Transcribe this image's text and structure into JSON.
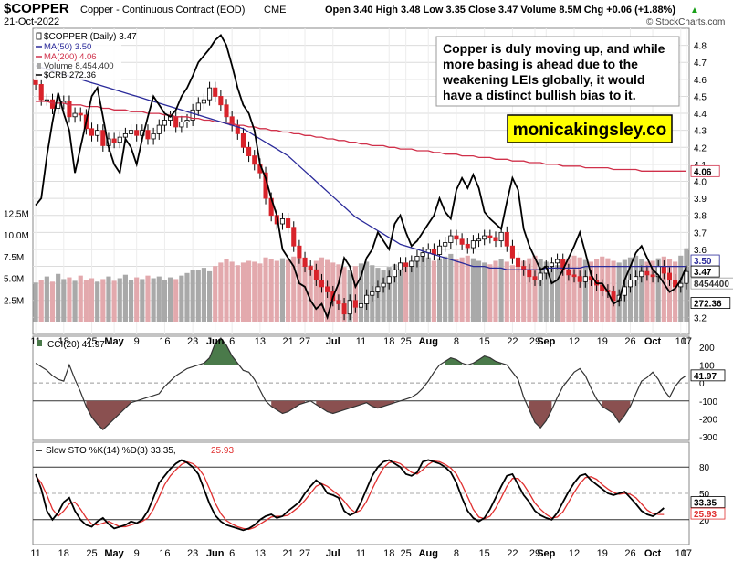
{
  "header": {
    "symbol": "$COPPER",
    "name": "Copper - Continuous Contract (EOD)",
    "exchange": "CME",
    "date": "21-Oct-2022",
    "quote": "Open 3.40  High 3.48  Low 3.35  Close 3.47  Volume 8.5M  Chg +0.06 (+1.88%)",
    "quote_arrow": "▲",
    "brand": "© StockCharts.com"
  },
  "legend": {
    "price": "$COPPER (Daily) 3.47",
    "ma50": "MA(50) 3.50",
    "ma200": "MA(200) 4.06",
    "volume": "Volume 8,454,400",
    "crb": "$CRB 272.36"
  },
  "annotation": {
    "lines": [
      "Copper is duly moving up, and while",
      "more basing is ahead due to the",
      "weakening LEIs globally, it would",
      "have a distinct bullish bias to it."
    ],
    "site": "monicakingsley.co"
  },
  "indicators": {
    "cci_label": "CCI(20) 41.97",
    "sto_label_a": "Slow STO %K(14) %D(3) 33.35,",
    "sto_label_b": "25.93"
  },
  "badges": {
    "ma200": "4.06",
    "close": "3.47",
    "ma50": "3.50",
    "volume": "8454400",
    "crb": "272.36",
    "cci": "41.97",
    "sto_k": "33.35",
    "sto_d": "25.93"
  },
  "colors": {
    "up_candle": "#ffffff",
    "down_candle": "#d8232a",
    "ma50": "#2a2a9a",
    "ma200": "#d0304a",
    "crb": "#000000",
    "volume_up": "#a9a9a9",
    "volume_down": "#e3a9ad",
    "cci_pos_fill": "#4a7a4a",
    "cci_neg_fill": "#8a5050",
    "sto_k": "#000000",
    "sto_d": "#e03030",
    "annotation_fill": "#ffff00"
  },
  "chart_data": [
    {
      "type": "line",
      "panel": "price",
      "x_tick_labels": [
        "11",
        "18",
        "25",
        "May",
        "9",
        "16",
        "23",
        "Jun",
        "6",
        "13",
        "21",
        "27",
        "Jul",
        "11",
        "18",
        "25",
        "Aug",
        "8",
        "15",
        "22",
        "29",
        "Sep",
        "12",
        "19",
        "26",
        "Oct",
        "10",
        "17"
      ],
      "y_tick_labels_right": [
        "4.8",
        "4.7",
        "4.6",
        "4.5",
        "4.4",
        "4.3",
        "4.2",
        "4.1",
        "4.0",
        "3.9",
        "3.8",
        "3.7",
        "3.6",
        "3.5",
        "3.4",
        "3.3",
        "3.2"
      ],
      "volume_axis_labels": [
        "12.5M",
        "10.0M",
        "7.5M",
        "5.0M",
        "2.5M"
      ],
      "ylim": [
        3.1,
        4.9
      ],
      "price_close": [
        4.57,
        4.48,
        4.48,
        4.43,
        4.46,
        4.47,
        4.38,
        4.4,
        4.39,
        4.31,
        4.27,
        4.3,
        4.21,
        4.25,
        4.23,
        4.26,
        4.28,
        4.3,
        4.27,
        4.3,
        4.25,
        4.28,
        4.33,
        4.36,
        4.38,
        4.32,
        4.35,
        4.36,
        4.42,
        4.46,
        4.48,
        4.55,
        4.5,
        4.45,
        4.38,
        4.33,
        4.28,
        4.2,
        4.15,
        4.1,
        4.05,
        3.9,
        3.8,
        3.75,
        3.78,
        3.73,
        3.62,
        3.55,
        3.5,
        3.48,
        3.42,
        3.38,
        3.35,
        3.3,
        3.28,
        3.22,
        3.3,
        3.26,
        3.28,
        3.33,
        3.35,
        3.38,
        3.4,
        3.44,
        3.48,
        3.52,
        3.5,
        3.53,
        3.56,
        3.58,
        3.6,
        3.57,
        3.62,
        3.64,
        3.68,
        3.66,
        3.63,
        3.61,
        3.65,
        3.66,
        3.68,
        3.67,
        3.65,
        3.7,
        3.62,
        3.55,
        3.5,
        3.48,
        3.44,
        3.42,
        3.46,
        3.5,
        3.52,
        3.54,
        3.48,
        3.45,
        3.44,
        3.41,
        3.44,
        3.42,
        3.39,
        3.36,
        3.35,
        3.3,
        3.33,
        3.38,
        3.42,
        3.44,
        3.47,
        3.45,
        3.44,
        3.5,
        3.46,
        3.42,
        3.38,
        3.4,
        3.47
      ],
      "ma50": [
        4.68,
        4.67,
        4.66,
        4.65,
        4.64,
        4.63,
        4.62,
        4.61,
        4.6,
        4.59,
        4.58,
        4.57,
        4.56,
        4.55,
        4.54,
        4.53,
        4.52,
        4.51,
        4.5,
        4.49,
        4.48,
        4.47,
        4.46,
        4.45,
        4.44,
        4.43,
        4.42,
        4.41,
        4.4,
        4.39,
        4.38,
        4.37,
        4.36,
        4.35,
        4.34,
        4.33,
        4.32,
        4.31,
        4.29,
        4.27,
        4.25,
        4.23,
        4.21,
        4.19,
        4.17,
        4.15,
        4.12,
        4.09,
        4.06,
        4.03,
        4.0,
        3.97,
        3.94,
        3.91,
        3.88,
        3.85,
        3.82,
        3.79,
        3.77,
        3.75,
        3.73,
        3.71,
        3.69,
        3.67,
        3.65,
        3.63,
        3.62,
        3.61,
        3.6,
        3.59,
        3.58,
        3.57,
        3.56,
        3.55,
        3.54,
        3.53,
        3.52,
        3.51,
        3.5,
        3.5,
        3.5,
        3.49,
        3.49,
        3.49,
        3.48,
        3.48,
        3.48,
        3.48,
        3.48,
        3.48,
        3.48,
        3.49,
        3.49,
        3.49,
        3.49,
        3.49,
        3.49,
        3.49,
        3.5,
        3.5,
        3.5,
        3.5,
        3.5,
        3.5,
        3.5,
        3.5,
        3.5,
        3.5,
        3.5,
        3.5,
        3.5,
        3.5,
        3.5,
        3.5,
        3.5,
        3.5,
        3.5
      ],
      "ma200": [
        4.47,
        4.47,
        4.47,
        4.46,
        4.46,
        4.46,
        4.45,
        4.45,
        4.45,
        4.44,
        4.44,
        4.44,
        4.43,
        4.43,
        4.42,
        4.42,
        4.42,
        4.41,
        4.41,
        4.41,
        4.4,
        4.4,
        4.4,
        4.39,
        4.39,
        4.38,
        4.38,
        4.38,
        4.37,
        4.37,
        4.36,
        4.36,
        4.35,
        4.35,
        4.34,
        4.34,
        4.33,
        4.33,
        4.32,
        4.32,
        4.31,
        4.31,
        4.3,
        4.3,
        4.29,
        4.29,
        4.28,
        4.28,
        4.27,
        4.27,
        4.26,
        4.26,
        4.25,
        4.25,
        4.24,
        4.24,
        4.23,
        4.23,
        4.22,
        4.22,
        4.21,
        4.21,
        4.21,
        4.2,
        4.2,
        4.19,
        4.19,
        4.19,
        4.18,
        4.18,
        4.18,
        4.17,
        4.17,
        4.16,
        4.16,
        4.16,
        4.15,
        4.15,
        4.15,
        4.14,
        4.14,
        4.14,
        4.13,
        4.13,
        4.13,
        4.12,
        4.12,
        4.12,
        4.11,
        4.11,
        4.11,
        4.1,
        4.1,
        4.1,
        4.09,
        4.09,
        4.09,
        4.09,
        4.08,
        4.08,
        4.08,
        4.08,
        4.08,
        4.07,
        4.07,
        4.07,
        4.07,
        4.07,
        4.06,
        4.06,
        4.06,
        4.06,
        4.06,
        4.06,
        4.06,
        4.06,
        4.06
      ],
      "crb": [
        3.86,
        3.9,
        4.15,
        4.35,
        4.52,
        4.4,
        4.3,
        4.05,
        4.2,
        4.35,
        4.5,
        4.55,
        4.38,
        4.2,
        4.1,
        4.05,
        4.25,
        4.2,
        4.1,
        4.25,
        4.38,
        4.5,
        4.45,
        4.4,
        4.38,
        4.42,
        4.5,
        4.55,
        4.62,
        4.7,
        4.74,
        4.78,
        4.83,
        4.86,
        4.8,
        4.68,
        4.55,
        4.45,
        4.4,
        4.3,
        4.1,
        4.02,
        3.9,
        3.8,
        3.6,
        3.55,
        3.5,
        3.4,
        3.38,
        3.3,
        3.25,
        3.28,
        3.2,
        3.32,
        3.4,
        3.55,
        3.5,
        3.38,
        3.44,
        3.55,
        3.6,
        3.7,
        3.65,
        3.6,
        3.75,
        3.8,
        3.7,
        3.62,
        3.65,
        3.7,
        3.75,
        3.8,
        3.9,
        3.82,
        3.78,
        3.95,
        4.02,
        3.96,
        4.04,
        3.96,
        3.82,
        3.78,
        3.75,
        3.72,
        3.88,
        4.02,
        3.95,
        3.72,
        3.62,
        3.55,
        3.48,
        3.5,
        3.4,
        3.42,
        3.48,
        3.55,
        3.62,
        3.7,
        3.58,
        3.45,
        3.4,
        3.4,
        3.35,
        3.28,
        3.3,
        3.42,
        3.5,
        3.58,
        3.62,
        3.55,
        3.48,
        3.45,
        3.4,
        3.35,
        3.37,
        3.42,
        3.5
      ],
      "volume_millions": [
        4.5,
        4.8,
        5.2,
        4.6,
        5.5,
        4.9,
        5.1,
        4.7,
        5.3,
        4.8,
        5.0,
        4.6,
        4.9,
        5.2,
        4.7,
        5.0,
        5.4,
        4.8,
        5.1,
        4.9,
        5.3,
        5.0,
        5.2,
        4.8,
        5.1,
        4.9,
        5.3,
        5.6,
        5.9,
        6.0,
        6.2,
        5.8,
        6.4,
        6.8,
        7.2,
        6.9,
        6.5,
        6.8,
        7.0,
        6.9,
        6.7,
        7.4,
        7.2,
        7.0,
        7.3,
        7.1,
        7.5,
        7.2,
        6.8,
        6.5,
        7.0,
        7.4,
        7.1,
        6.8,
        6.6,
        6.3,
        6.0,
        6.4,
        6.7,
        6.9,
        6.5,
        6.2,
        6.0,
        6.3,
        6.6,
        6.4,
        6.8,
        7.0,
        7.2,
        7.6,
        7.4,
        7.0,
        7.3,
        7.5,
        7.8,
        7.2,
        7.4,
        7.6,
        7.3,
        7.0,
        6.8,
        6.6,
        7.0,
        7.2,
        6.9,
        6.5,
        6.8,
        7.0,
        7.3,
        7.6,
        7.2,
        6.9,
        6.7,
        6.5,
        7.0,
        7.3,
        7.6,
        7.4,
        7.1,
        6.9,
        7.2,
        7.5,
        7.3,
        7.0,
        6.8,
        7.1,
        7.4,
        7.6,
        7.2,
        6.9,
        7.0,
        7.3,
        7.5,
        7.2,
        6.9,
        7.6,
        8.45
      ]
    },
    {
      "type": "area",
      "panel": "cci",
      "y_tick_labels_right": [
        "200",
        "100",
        "0",
        "-100",
        "-200",
        "-300"
      ],
      "ylim": [
        -320,
        260
      ],
      "values": [
        110,
        90,
        70,
        40,
        20,
        10,
        100,
        20,
        -50,
        -130,
        -190,
        -230,
        -260,
        -230,
        -200,
        -170,
        -140,
        -110,
        -100,
        -90,
        -80,
        -70,
        -60,
        -20,
        10,
        40,
        60,
        80,
        90,
        100,
        110,
        140,
        220,
        250,
        210,
        150,
        110,
        70,
        60,
        20,
        -40,
        -100,
        -130,
        -150,
        -170,
        -160,
        -140,
        -120,
        -110,
        -100,
        -120,
        -140,
        -160,
        -170,
        -160,
        -150,
        -140,
        -130,
        -120,
        -110,
        -130,
        -140,
        -130,
        -120,
        -110,
        -100,
        -90,
        -80,
        -60,
        -30,
        10,
        60,
        100,
        120,
        140,
        130,
        110,
        100,
        110,
        130,
        150,
        140,
        120,
        110,
        100,
        60,
        20,
        -80,
        -150,
        -220,
        -250,
        -210,
        -150,
        -80,
        -20,
        20,
        60,
        80,
        40,
        -30,
        -90,
        -130,
        -150,
        -170,
        -220,
        -180,
        -130,
        -60,
        10,
        30,
        60,
        20,
        -40,
        -80,
        -20,
        20,
        41.97
      ]
    },
    {
      "type": "line",
      "panel": "stochastic",
      "y_tick_labels_right": [
        "80",
        "50",
        "20"
      ],
      "ylim": [
        0,
        100
      ],
      "k": [
        72,
        55,
        30,
        20,
        28,
        40,
        45,
        30,
        20,
        14,
        12,
        18,
        22,
        15,
        10,
        12,
        14,
        18,
        16,
        20,
        30,
        45,
        62,
        70,
        78,
        84,
        88,
        85,
        80,
        72,
        55,
        38,
        25,
        18,
        14,
        12,
        10,
        8,
        10,
        14,
        20,
        24,
        26,
        22,
        24,
        30,
        35,
        40,
        50,
        58,
        65,
        60,
        50,
        48,
        45,
        30,
        25,
        28,
        40,
        55,
        70,
        80,
        86,
        88,
        84,
        80,
        72,
        70,
        74,
        86,
        88,
        86,
        84,
        80,
        74,
        62,
        45,
        30,
        22,
        18,
        22,
        32,
        45,
        58,
        70,
        72,
        60,
        48,
        40,
        30,
        25,
        22,
        20,
        28,
        40,
        52,
        62,
        70,
        72,
        65,
        60,
        55,
        50,
        48,
        50,
        52,
        45,
        38,
        30,
        26,
        24,
        28,
        33.35
      ],
      "d": [
        70,
        62,
        48,
        32,
        24,
        30,
        38,
        40,
        32,
        22,
        15,
        14,
        16,
        18,
        15,
        12,
        12,
        14,
        16,
        18,
        22,
        32,
        46,
        60,
        70,
        77,
        83,
        86,
        84,
        79,
        70,
        55,
        39,
        27,
        19,
        15,
        12,
        10,
        9,
        11,
        15,
        19,
        23,
        24,
        24,
        25,
        30,
        35,
        42,
        50,
        58,
        61,
        58,
        53,
        48,
        41,
        33,
        28,
        31,
        41,
        55,
        68,
        79,
        85,
        86,
        84,
        79,
        74,
        72,
        77,
        83,
        87,
        86,
        83,
        79,
        72,
        60,
        46,
        32,
        23,
        21,
        24,
        33,
        45,
        58,
        67,
        67,
        60,
        50,
        39,
        32,
        26,
        22,
        23,
        29,
        40,
        51,
        61,
        68,
        69,
        66,
        60,
        55,
        51,
        49,
        50,
        49,
        45,
        38,
        31,
        27,
        26,
        25.93
      ]
    }
  ]
}
